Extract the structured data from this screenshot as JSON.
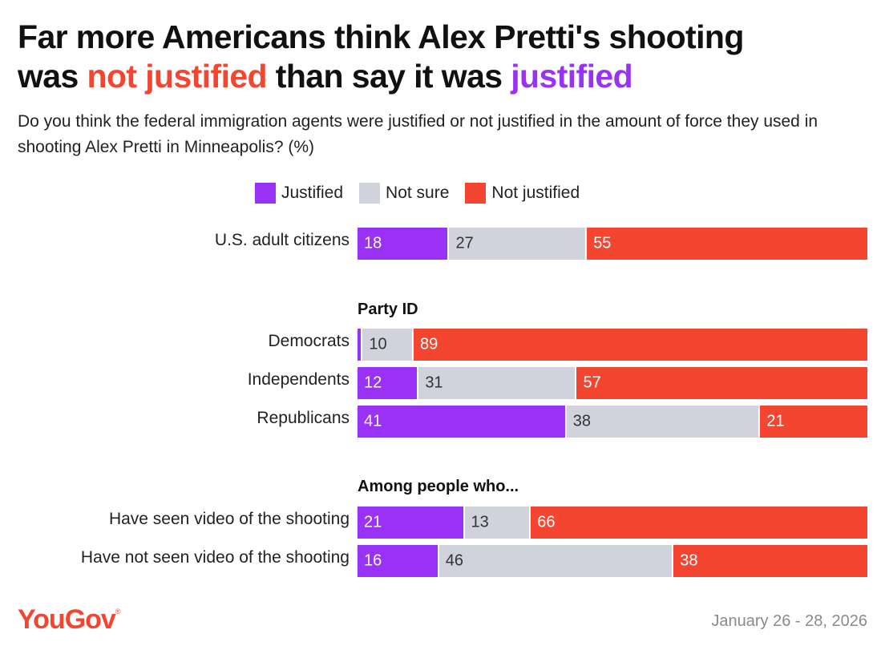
{
  "title": {
    "part1": "Far more Americans think Alex Pretti's shooting",
    "part2": "was ",
    "highlight_red": "not justified",
    "part3": " than say it was ",
    "highlight_purple": "justified"
  },
  "subtitle": "Do you think the federal immigration agents were justified or not justified in the amount of force they used in shooting Alex Pretti in Minneapolis? (%)",
  "colors": {
    "justified": "#9a32f5",
    "not_sure": "#d0d3dc",
    "not_justified": "#f44530"
  },
  "legend": [
    {
      "label": "Justified",
      "color": "#9a32f5"
    },
    {
      "label": "Not sure",
      "color": "#d0d3dc"
    },
    {
      "label": "Not justified",
      "color": "#f44530"
    }
  ],
  "chart_data": {
    "type": "bar",
    "orientation": "horizontal-stacked-100",
    "title": "Far more Americans think Alex Pretti's shooting was not justified than say it was justified",
    "series_names": [
      "Justified",
      "Not sure",
      "Not justified"
    ],
    "groups": [
      {
        "heading": "",
        "rows": [
          {
            "label": "U.S. adult citizens",
            "values": [
              18,
              27,
              55
            ],
            "labels": [
              "18",
              "27",
              "55"
            ]
          }
        ]
      },
      {
        "heading": "Party ID",
        "rows": [
          {
            "label": "Democrats",
            "values": [
              1,
              10,
              89
            ],
            "labels": [
              "",
              "10",
              "89"
            ]
          },
          {
            "label": "Independents",
            "values": [
              12,
              31,
              57
            ],
            "labels": [
              "12",
              "31",
              "57"
            ]
          },
          {
            "label": "Republicans",
            "values": [
              41,
              38,
              21
            ],
            "labels": [
              "41",
              "38",
              "21"
            ]
          }
        ]
      },
      {
        "heading": "Among people who...",
        "rows": [
          {
            "label": "Have seen video of the shooting",
            "values": [
              21,
              13,
              66
            ],
            "labels": [
              "21",
              "13",
              "66"
            ]
          },
          {
            "label": "Have not seen video of the shooting",
            "values": [
              16,
              46,
              38
            ],
            "labels": [
              "16",
              "46",
              "38"
            ]
          }
        ]
      }
    ],
    "xlim": [
      0,
      100
    ]
  },
  "footer": {
    "logo": "YouGov",
    "logo_mark": "®",
    "date": "January 26 - 28, 2026"
  }
}
